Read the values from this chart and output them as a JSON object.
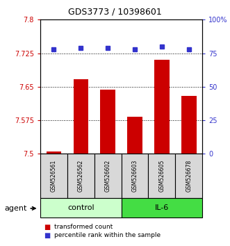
{
  "title": "GDS3773 / 10398601",
  "samples": [
    "GSM526561",
    "GSM526562",
    "GSM526602",
    "GSM526603",
    "GSM526605",
    "GSM526678"
  ],
  "bar_values": [
    7.505,
    7.667,
    7.643,
    7.583,
    7.71,
    7.63
  ],
  "percentile_values": [
    78,
    79,
    79,
    78,
    80,
    78
  ],
  "bar_color": "#cc0000",
  "dot_color": "#3333cc",
  "ylim_left": [
    7.5,
    7.8
  ],
  "ylim_right": [
    0,
    100
  ],
  "yticks_left": [
    7.5,
    7.575,
    7.65,
    7.725,
    7.8
  ],
  "ytick_labels_left": [
    "7.5",
    "7.575",
    "7.65",
    "7.725",
    "7.8"
  ],
  "yticks_right": [
    0,
    25,
    50,
    75,
    100
  ],
  "ytick_labels_right": [
    "0",
    "25",
    "50",
    "75",
    "100%"
  ],
  "grid_values": [
    7.575,
    7.65,
    7.725
  ],
  "control_label": "control",
  "il6_label": "IL-6",
  "control_color": "#ccffcc",
  "il6_color": "#44dd44",
  "agent_label": "agent",
  "legend_bar_label": "transformed count",
  "legend_dot_label": "percentile rank within the sample",
  "sample_bg_color": "#d8d8d8",
  "plot_bg_color": "#ffffff",
  "title_fontsize": 9,
  "tick_fontsize": 7,
  "sample_fontsize": 5.5,
  "group_fontsize": 8,
  "legend_fontsize": 6.5,
  "agent_fontsize": 8
}
